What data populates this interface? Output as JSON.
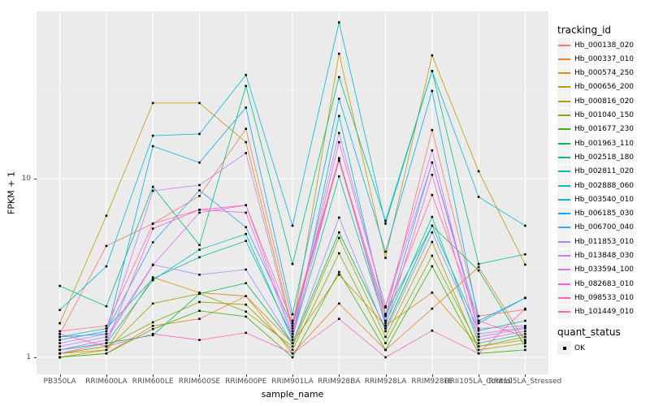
{
  "chart_data": {
    "type": "line",
    "title": "",
    "xlabel": "sample_name",
    "ylabel": "FPKM + 1",
    "yscale": "log10",
    "ylim": [
      1,
      86
    ],
    "y_ticks": [
      1,
      10
    ],
    "y_minor_ticks": [
      3.162,
      31.623
    ],
    "grid": true,
    "legend_position": "right",
    "point_shape": "square",
    "categories": [
      "PB350LA",
      "RRIM600LA",
      "RRIM600LE",
      "RRIM600SE",
      "RRIM600PE",
      "RRIM901LA",
      "RRIM928BA",
      "RRIM928LA",
      "RRIM928LE",
      "RRII105LA_Control",
      "RRII105LA_Stressed"
    ],
    "series": [
      {
        "name": "Hb_000138_020",
        "color": "#F8766D",
        "values": [
          1.35,
          4.2,
          5.6,
          8.0,
          19.0,
          1.6,
          13.0,
          1.7,
          18.7,
          1.7,
          1.85
        ]
      },
      {
        "name": "Hb_000337_010",
        "color": "#EA8331",
        "values": [
          1.0,
          1.05,
          1.5,
          1.64,
          2.2,
          1.05,
          2.0,
          1.1,
          1.87,
          3.2,
          1.23
        ]
      },
      {
        "name": "Hb_000574_250",
        "color": "#D89000",
        "values": [
          1.05,
          1.1,
          2.8,
          2.3,
          2.2,
          1.2,
          2.9,
          1.5,
          2.3,
          1.15,
          1.25
        ]
      },
      {
        "name": "Hb_000656_200",
        "color": "#C09B00",
        "values": [
          1.55,
          6.2,
          26.5,
          26.5,
          16.0,
          1.45,
          50.0,
          3.6,
          49.0,
          11.0,
          3.3
        ]
      },
      {
        "name": "Hb_000816_020",
        "color": "#A3A500",
        "values": [
          1.0,
          1.1,
          2.0,
          2.27,
          1.8,
          1.15,
          4.66,
          1.3,
          4.42,
          1.1,
          1.2
        ]
      },
      {
        "name": "Hb_001040_150",
        "color": "#7CAE00",
        "values": [
          1.05,
          1.15,
          1.57,
          2.04,
          1.97,
          1.1,
          3.82,
          1.2,
          3.7,
          1.15,
          1.3
        ]
      },
      {
        "name": "Hb_001677_230",
        "color": "#39B600",
        "values": [
          1.0,
          1.05,
          1.44,
          1.82,
          1.69,
          1.0,
          3.0,
          1.1,
          3.23,
          1.05,
          1.1
        ]
      },
      {
        "name": "Hb_001963_110",
        "color": "#00BB4E",
        "values": [
          1.1,
          1.2,
          1.33,
          2.27,
          2.6,
          1.2,
          5.0,
          1.45,
          5.45,
          3.06,
          1.15
        ]
      },
      {
        "name": "Hb_002518_180",
        "color": "#00BF7D",
        "values": [
          2.51,
          1.93,
          9.0,
          4.25,
          33.0,
          3.33,
          37.0,
          5.8,
          40.0,
          3.33,
          3.77
        ]
      },
      {
        "name": "Hb_002811_020",
        "color": "#00C1A3",
        "values": [
          1.3,
          1.45,
          2.75,
          3.63,
          4.48,
          1.3,
          10.3,
          1.55,
          6.1,
          1.2,
          1.35
        ]
      },
      {
        "name": "Hb_002888_060",
        "color": "#00BFC4",
        "values": [
          1.1,
          1.2,
          2.7,
          4.0,
          4.9,
          1.25,
          22.4,
          1.74,
          5.45,
          1.41,
          1.6
        ]
      },
      {
        "name": "Hb_003540_010",
        "color": "#00BAE0",
        "values": [
          1.84,
          3.23,
          17.4,
          17.8,
          38.0,
          5.45,
          75.0,
          5.6,
          40.0,
          7.9,
          5.45
        ]
      },
      {
        "name": "Hb_006185_030",
        "color": "#00B0F6",
        "values": [
          1.3,
          1.35,
          15.2,
          12.3,
          25.0,
          1.74,
          28.0,
          3.9,
          31.0,
          1.6,
          2.15
        ]
      },
      {
        "name": "Hb_006700_040",
        "color": "#35A2FF",
        "values": [
          1.25,
          1.4,
          4.4,
          8.6,
          5.35,
          1.5,
          12.6,
          1.6,
          12.3,
          1.55,
          2.15
        ]
      },
      {
        "name": "Hb_011853_010",
        "color": "#9590FF",
        "values": [
          1.15,
          1.3,
          3.3,
          2.9,
          3.1,
          1.2,
          6.05,
          1.4,
          5.0,
          1.3,
          1.45
        ]
      },
      {
        "name": "Hb_013848_030",
        "color": "#C77CFF",
        "values": [
          1.2,
          1.35,
          8.55,
          9.2,
          13.9,
          1.4,
          18.0,
          1.9,
          12.3,
          1.45,
          1.5
        ]
      },
      {
        "name": "Hb_033594_100",
        "color": "#E76BF3",
        "values": [
          1.1,
          1.25,
          3.28,
          6.45,
          7.1,
          1.35,
          16.0,
          1.93,
          14.4,
          1.35,
          1.47
        ]
      },
      {
        "name": "Hb_082683_010",
        "color": "#FA62DB",
        "values": [
          1.05,
          1.2,
          5.25,
          6.7,
          6.45,
          1.3,
          13.0,
          1.5,
          10.5,
          1.25,
          1.4
        ]
      },
      {
        "name": "Hb_098533_010",
        "color": "#FF62BC",
        "values": [
          1.35,
          1.15,
          1.35,
          1.25,
          1.37,
          1.05,
          1.64,
          1.0,
          1.41,
          1.05,
          1.87
        ]
      },
      {
        "name": "Hb_101449_010",
        "color": "#FF6A98",
        "values": [
          1.4,
          1.5,
          5.6,
          6.7,
          7.1,
          1.55,
          12.6,
          1.75,
          8.1,
          1.6,
          1.3
        ]
      }
    ]
  },
  "legend": {
    "tracking_title": "tracking_id",
    "quant_title": "quant_status",
    "quant_items": [
      "OK"
    ]
  },
  "colors": {
    "panel_bg": "#EBEBEB",
    "grid": "#FFFFFF",
    "axis_text": "#4D4D4D",
    "point": "#000000",
    "legend_key_bg": "#F2F2F2"
  }
}
